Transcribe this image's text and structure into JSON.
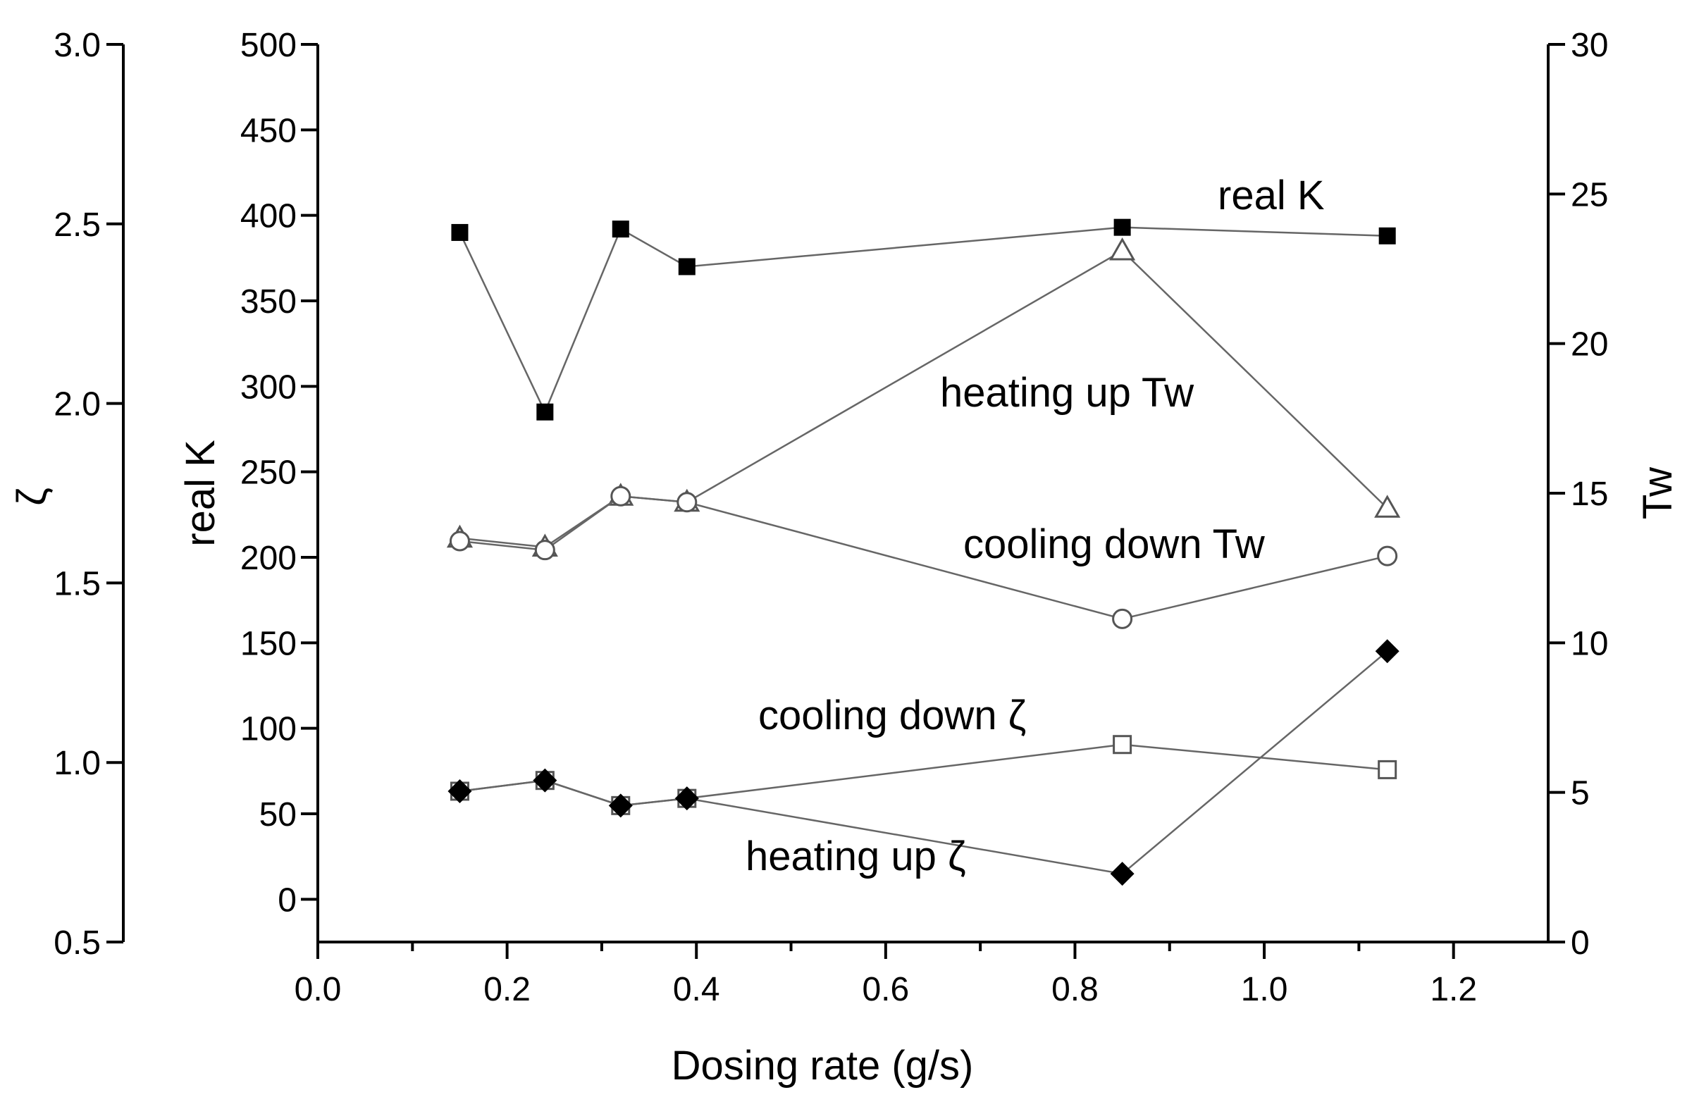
{
  "chart_data": {
    "type": "line",
    "xlabel": "Dosing rate (g/s)",
    "xlim": [
      0.0,
      1.3
    ],
    "x_ticks": [
      0.0,
      0.2,
      0.4,
      0.6,
      0.8,
      1.0,
      1.2
    ],
    "x_tick_labels": [
      "0.0",
      "0.2",
      "0.4",
      "0.6",
      "0.8",
      "1.0",
      "1.2"
    ],
    "axes": {
      "k": {
        "label": "real K",
        "lim": [
          -25,
          500
        ],
        "ticks": [
          0,
          50,
          100,
          150,
          200,
          250,
          300,
          350,
          400,
          450,
          500
        ],
        "tick_labels": [
          "0",
          "50",
          "100",
          "150",
          "200",
          "250",
          "300",
          "350",
          "400",
          "450",
          "500"
        ]
      },
      "zeta": {
        "label": "ζ",
        "lim": [
          0.5,
          3.0
        ],
        "ticks": [
          0.5,
          1.0,
          1.5,
          2.0,
          2.5,
          3.0
        ],
        "tick_labels": [
          "0.5",
          "1.0",
          "1.5",
          "2.0",
          "2.5",
          "3.0"
        ]
      },
      "tw": {
        "label": "Tw",
        "lim": [
          0,
          30
        ],
        "ticks": [
          0,
          5,
          10,
          15,
          20,
          25,
          30
        ],
        "tick_labels": [
          "0",
          "5",
          "10",
          "15",
          "20",
          "25",
          "30"
        ]
      }
    },
    "series": [
      {
        "name": "real K",
        "axis": "k",
        "marker": "filled-square",
        "x": [
          0.15,
          0.24,
          0.32,
          0.39,
          0.85,
          1.13
        ],
        "y": [
          390,
          285,
          392,
          370,
          393,
          388
        ]
      },
      {
        "name": "heating up Tw",
        "axis": "tw",
        "marker": "open-triangle",
        "x": [
          0.15,
          0.24,
          0.32,
          0.39,
          0.85,
          1.13
        ],
        "y": [
          13.5,
          13.2,
          14.9,
          14.7,
          23.1,
          14.5
        ]
      },
      {
        "name": "cooling down Tw",
        "axis": "tw",
        "marker": "open-circle",
        "x": [
          0.15,
          0.24,
          0.32,
          0.39,
          0.85,
          1.13
        ],
        "y": [
          13.4,
          13.1,
          14.9,
          14.7,
          10.8,
          12.9
        ]
      },
      {
        "name": "cooling down ζ",
        "axis": "zeta",
        "marker": "open-square",
        "x": [
          0.15,
          0.24,
          0.32,
          0.39,
          0.85,
          1.13
        ],
        "y": [
          0.92,
          0.95,
          0.88,
          0.9,
          1.05,
          0.98
        ]
      },
      {
        "name": "heating up ζ",
        "axis": "zeta",
        "marker": "filled-diamond",
        "x": [
          0.15,
          0.24,
          0.32,
          0.39,
          0.85,
          1.13
        ],
        "y": [
          0.92,
          0.95,
          0.88,
          0.9,
          0.69,
          1.31
        ]
      }
    ],
    "annotations": [
      "real K",
      "heating up Tw",
      "cooling down Tw",
      "cooling down ζ",
      "heating up ζ"
    ]
  }
}
